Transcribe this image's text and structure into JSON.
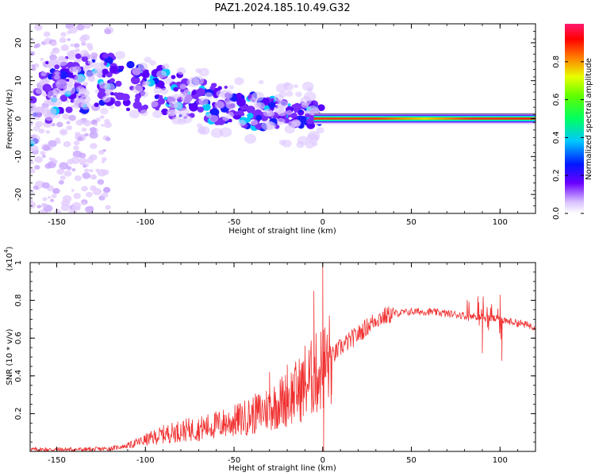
{
  "title": "PAZ1.2024.185.10.49.G32",
  "chart_data": [
    {
      "type": "heatmap",
      "xlabel": "Height of straight line (km)",
      "ylabel": "Frequency (Hz)",
      "xlim": [
        -165,
        120
      ],
      "ylim": [
        -25,
        25
      ],
      "xticks": [
        -150,
        -100,
        -50,
        0,
        50,
        100
      ],
      "yticks": [
        -20,
        -10,
        0,
        10,
        20
      ],
      "colorbar": {
        "label": "Normalized spectral amplitude",
        "range": [
          0,
          1
        ],
        "ticks": [
          0.0,
          0.2,
          0.4,
          0.6,
          0.8
        ],
        "colormap": [
          "#e8d8f8",
          "#9a4dff",
          "#5a00ff",
          "#0030ff",
          "#00d8ff",
          "#00ff40",
          "#c8ff00",
          "#ff8000",
          "#ff0000",
          "#ff1a66"
        ]
      },
      "features": {
        "noise_region": {
          "x": [
            -165,
            -120
          ],
          "frequency_range": [
            -25,
            25
          ],
          "amplitude": 0.15
        },
        "blob_trend": [
          [
            -160,
            7
          ],
          [
            -140,
            9
          ],
          [
            -120,
            10
          ],
          [
            -100,
            8
          ],
          [
            -80,
            6
          ],
          [
            -60,
            4
          ],
          [
            -40,
            2
          ],
          [
            -20,
            1
          ],
          [
            0,
            1
          ]
        ],
        "tone_line": {
          "x_start": -5,
          "x_end": 120,
          "frequency": 0,
          "amplitude": 0.9
        }
      }
    },
    {
      "type": "line",
      "xlabel": "Height of straight line (km)",
      "ylabel": "SNR (10 * v/v)",
      "scale_label": "(x10",
      "scale_exponent": "4",
      "xlim": [
        -165,
        120
      ],
      "ylim": [
        0,
        1.0
      ],
      "xticks": [
        -150,
        -100,
        -50,
        0,
        50,
        100
      ],
      "yticks": [
        0.2,
        0.4,
        0.6,
        0.8,
        1.0
      ],
      "series": [
        {
          "color": "#f03030",
          "x": [
            -165,
            -150,
            -130,
            -120,
            -110,
            -100,
            -90,
            -80,
            -70,
            -60,
            -50,
            -40,
            -30,
            -20,
            -10,
            -5,
            -2,
            0,
            2,
            5,
            10,
            20,
            30,
            40,
            50,
            60,
            70,
            80,
            90,
            100,
            110,
            120
          ],
          "y": [
            0.01,
            0.01,
            0.01,
            0.015,
            0.03,
            0.06,
            0.09,
            0.11,
            0.12,
            0.14,
            0.16,
            0.19,
            0.23,
            0.28,
            0.35,
            0.4,
            0.42,
            0.45,
            0.46,
            0.5,
            0.55,
            0.62,
            0.7,
            0.73,
            0.74,
            0.74,
            0.73,
            0.72,
            0.71,
            0.7,
            0.68,
            0.66
          ]
        }
      ],
      "spikes": [
        [
          -30,
          0.42
        ],
        [
          -20,
          0.46
        ],
        [
          -10,
          0.56
        ],
        [
          -5,
          0.85
        ],
        [
          0,
          1.0
        ],
        [
          0.5,
          0.0
        ],
        [
          5,
          0.3
        ],
        [
          88,
          0.79
        ],
        [
          90,
          0.52
        ],
        [
          100,
          0.83
        ],
        [
          101,
          0.48
        ]
      ]
    }
  ]
}
